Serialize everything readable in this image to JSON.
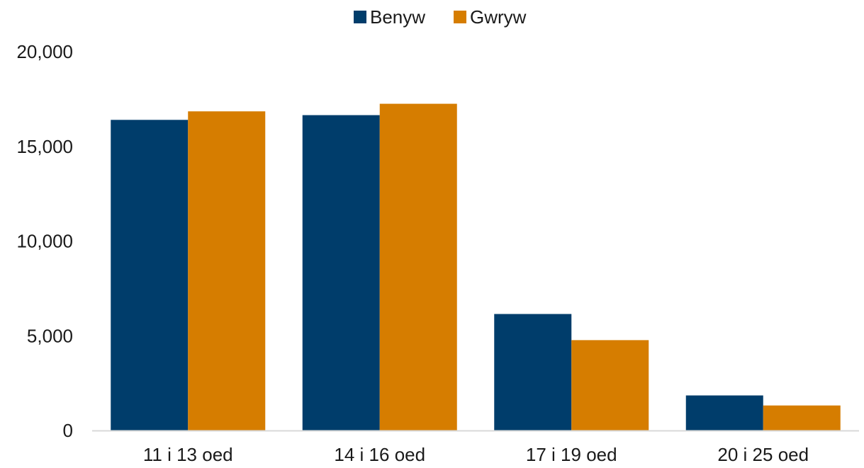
{
  "chart_data": {
    "type": "bar",
    "title": "",
    "xlabel": "",
    "ylabel": "",
    "categories": [
      "11 i 13 oed",
      "14 i 16 oed",
      "17 i 19 oed",
      "20 i 25 oed"
    ],
    "series": [
      {
        "name": "Benyw",
        "values": [
          16400,
          16650,
          6150,
          1850
        ]
      },
      {
        "name": "Gwryw",
        "values": [
          16850,
          17250,
          4770,
          1320
        ]
      }
    ],
    "ylim": [
      0,
      20000
    ],
    "yticks": [
      0,
      5000,
      10000,
      15000,
      20000
    ],
    "ytick_labels": [
      "0",
      "5,000",
      "10,000",
      "15,000",
      "20,000"
    ],
    "grid": false,
    "legend_position": "top-center",
    "colors": {
      "Benyw": "#003d6b",
      "Gwryw": "#d67d00",
      "axis": "#d9d9d9"
    }
  }
}
